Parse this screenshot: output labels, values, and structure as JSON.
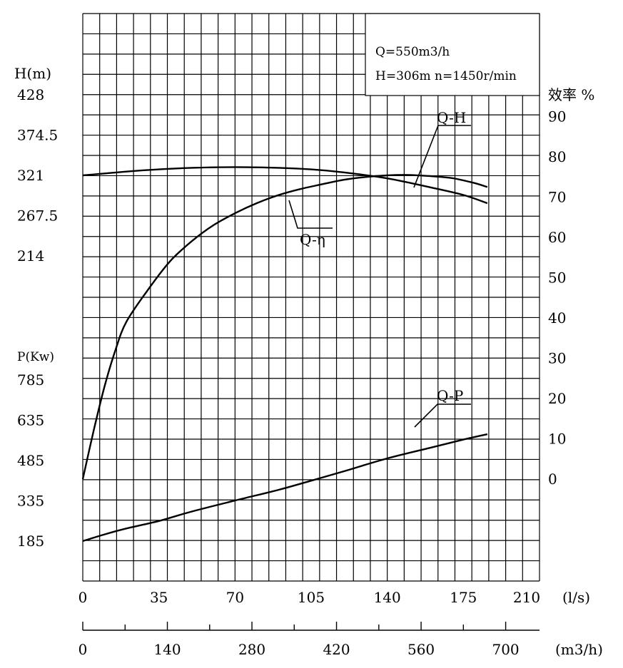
{
  "chart_data": {
    "type": "line",
    "title": "",
    "info": {
      "line1": "Q=550m3/h",
      "line2": "H=306m  n=1450r/min"
    },
    "head_axis": {
      "title": "H(m)",
      "ticks": [
        "428",
        "374.5",
        "321",
        "267.5",
        "214"
      ],
      "values": [
        428,
        374.5,
        321,
        267.5,
        214
      ]
    },
    "power_axis": {
      "title": "P(Kw)",
      "ticks": [
        "785",
        "635",
        "485",
        "335",
        "185"
      ],
      "values": [
        785,
        635,
        485,
        335,
        185
      ]
    },
    "efficiency_axis": {
      "title": "效率 %",
      "ticks": [
        "90",
        "80",
        "70",
        "60",
        "50",
        "40",
        "30",
        "20",
        "10",
        "0"
      ],
      "values": [
        90,
        80,
        70,
        60,
        50,
        40,
        30,
        20,
        10,
        0
      ]
    },
    "flow_ls_axis": {
      "unit": "(l/s)",
      "ticks": [
        "0",
        "35",
        "70",
        "105",
        "140",
        "175",
        "210"
      ],
      "values": [
        0,
        35,
        70,
        105,
        140,
        175,
        210
      ]
    },
    "flow_m3h_axis": {
      "unit": "(m3/h)",
      "ticks": [
        "0",
        "140",
        "280",
        "420",
        "560",
        "700"
      ],
      "values": [
        0,
        140,
        280,
        420,
        560,
        700
      ]
    },
    "series": [
      {
        "name": "Q-H",
        "axis": "head",
        "x_ls": [
          0,
          20,
          35,
          50,
          70,
          90,
          105,
          120,
          140,
          160,
          175,
          186
        ],
        "values": [
          321,
          326,
          329,
          331,
          332,
          331,
          329,
          325,
          317,
          305,
          295,
          284
        ]
      },
      {
        "name": "Q-η",
        "axis": "efficiency",
        "x_ls": [
          0,
          5,
          10,
          15,
          20,
          30,
          40,
          50,
          60,
          70,
          80,
          90,
          100,
          110,
          120,
          130,
          140,
          150,
          160,
          170,
          180,
          186
        ],
        "values": [
          0,
          12,
          23,
          32,
          39,
          47,
          54,
          59,
          63,
          66,
          68.5,
          70.5,
          72,
          73.2,
          74.3,
          75,
          75.4,
          75.5,
          75.2,
          74.7,
          73.5,
          72.5
        ]
      },
      {
        "name": "Q-P",
        "axis": "power",
        "x_ls": [
          0,
          10,
          20,
          35,
          50,
          70,
          90,
          105,
          120,
          140,
          160,
          175,
          186
        ],
        "values": [
          185,
          210,
          232,
          260,
          295,
          336,
          376,
          410,
          445,
          493,
          533,
          563,
          583
        ]
      }
    ],
    "grid": true
  }
}
